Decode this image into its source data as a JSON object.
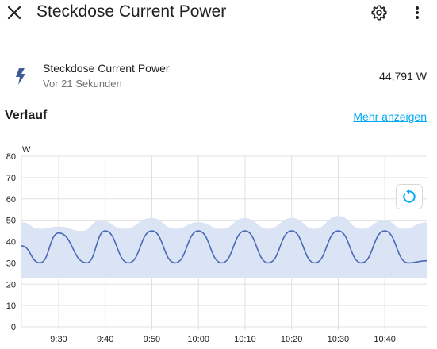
{
  "header": {
    "title": "Steckdose Current Power",
    "close_icon": "close-icon",
    "settings_icon": "gear-icon",
    "more_icon": "more-vertical-icon"
  },
  "entity": {
    "icon": "lightning-bolt-icon",
    "name": "Steckdose Current Power",
    "last_changed": "Vor 21 Sekunden",
    "state": "44,791 W"
  },
  "history": {
    "title": "Verlauf",
    "show_more": "Mehr anzeigen",
    "reset_zoom_icon": "refresh-icon"
  },
  "colors": {
    "accent": "#03a9f4",
    "line": "#4a68b5",
    "band": "#dbe4f5",
    "icon": "#3f5a94"
  },
  "chart_data": {
    "type": "line",
    "ylabel": "W",
    "ylim": [
      0,
      80
    ],
    "y_ticks": [
      "0",
      "10",
      "20",
      "30",
      "40",
      "50",
      "60",
      "70",
      "80"
    ],
    "x_ticks": [
      "9:30",
      "9:40",
      "9:50",
      "10:00",
      "10:10",
      "10:20",
      "10:30",
      "10:40"
    ],
    "grid": true,
    "series": [
      {
        "role": "mean",
        "points": [
          [
            0,
            38
          ],
          [
            4,
            30
          ],
          [
            8,
            44
          ],
          [
            14,
            30
          ],
          [
            18,
            45
          ],
          [
            23,
            30
          ],
          [
            28,
            45
          ],
          [
            33,
            30
          ],
          [
            38,
            45
          ],
          [
            43,
            30
          ],
          [
            48,
            45
          ],
          [
            53,
            30
          ],
          [
            58,
            45
          ],
          [
            63,
            30
          ],
          [
            68,
            45
          ],
          [
            73,
            30
          ],
          [
            78,
            45
          ],
          [
            83,
            30
          ],
          [
            87,
            31
          ]
        ]
      },
      {
        "role": "max",
        "points": [
          [
            0,
            49
          ],
          [
            4,
            46
          ],
          [
            8,
            47
          ],
          [
            13,
            45
          ],
          [
            17,
            50
          ],
          [
            22,
            46
          ],
          [
            28,
            51
          ],
          [
            33,
            46
          ],
          [
            38,
            49
          ],
          [
            43,
            46
          ],
          [
            48,
            51
          ],
          [
            53,
            46
          ],
          [
            58,
            51
          ],
          [
            63,
            46
          ],
          [
            68,
            52
          ],
          [
            73,
            46
          ],
          [
            78,
            50
          ],
          [
            82,
            46
          ],
          [
            87,
            49
          ]
        ]
      },
      {
        "role": "min",
        "points": [
          [
            0,
            23
          ],
          [
            87,
            23
          ]
        ]
      }
    ]
  }
}
